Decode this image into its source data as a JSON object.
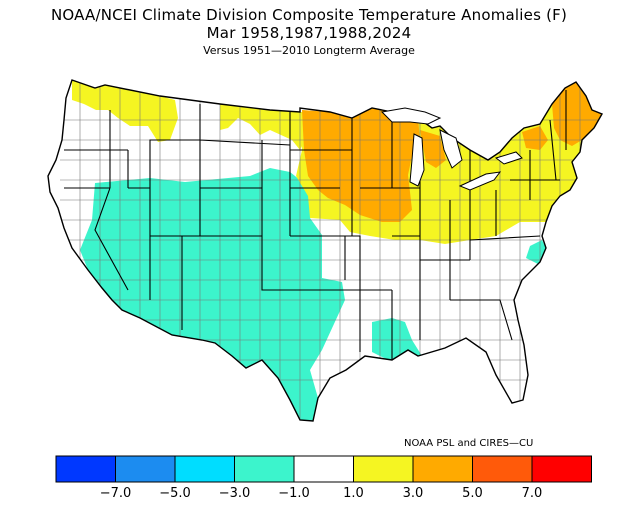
{
  "title": {
    "line1": "NOAA/NCEI Climate Division Composite Temperature Anomalies (F)",
    "line2": "Mar   1958,1987,1988,2024",
    "line3": "Versus 1951—2010 Longterm Average"
  },
  "credit": "NOAA PSL and CIRES—CU",
  "colors": {
    "bin_lt_-7": "#0038ff",
    "bin_-7_-5": "#1c8cf0",
    "bin_-5_-3": "#00ddff",
    "bin_-3_-1": "#3cf4cc",
    "bin_-1_1": "#ffffff",
    "bin_1_3": "#f5f522",
    "bin_3_5": "#ffaa00",
    "bin_5_7": "#ff5a0a",
    "bin_gt_7": "#ff0000",
    "state_lines": "#000000",
    "division_lines": "#777777"
  },
  "legend": {
    "bins": [
      {
        "range": "< -7.0",
        "color": "#0038ff"
      },
      {
        "range": "-7.0 to -5.0",
        "color": "#1c8cf0"
      },
      {
        "range": "-5.0 to -3.0",
        "color": "#00ddff"
      },
      {
        "range": "-3.0 to -1.0",
        "color": "#3cf4cc"
      },
      {
        "range": "-1.0 to 1.0",
        "color": "#ffffff"
      },
      {
        "range": "1.0 to 3.0",
        "color": "#f5f522"
      },
      {
        "range": "3.0 to 5.0",
        "color": "#ffaa00"
      },
      {
        "range": "5.0 to 7.0",
        "color": "#ff5a0a"
      },
      {
        "range": "> 7.0",
        "color": "#ff0000"
      }
    ],
    "tick_labels": [
      "−7.0",
      "−5.0",
      "−3.0",
      "−1.0",
      "1.0",
      "3.0",
      "5.0",
      "7.0"
    ]
  },
  "regions": {
    "southwest_anomaly": "-3.0 to -1.0",
    "upper_midwest_anomaly": "3.0 to 5.0",
    "northeast_anomaly": "1.0 to 3.0 with 3.0 to 5.0 in northern New England",
    "southeast_anomaly": "-1.0 to 1.0"
  }
}
